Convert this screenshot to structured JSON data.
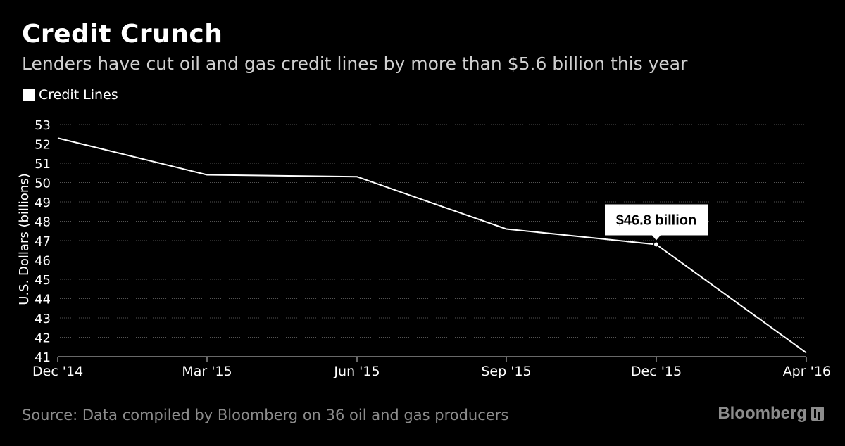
{
  "title": "Credit Crunch",
  "subtitle": "Lenders have cut oil and gas credit lines by more than $5.6 billion this year",
  "legend_label": "Credit Lines",
  "source": "Source: Data compiled by Bloomberg on 36 oil and gas producers",
  "brand": "Bloomberg",
  "brand_icon": "bloomberg-terminal-icon",
  "colors": {
    "background": "#000000",
    "line": "#ffffff",
    "grid": "#555555",
    "callout_bg": "#ffffff",
    "callout_text": "#000000"
  },
  "chart_data": {
    "type": "line",
    "title": "Credit Crunch",
    "ylabel": "U.S. Dollars (billions)",
    "xlabel": "",
    "x_ticks": [
      "Dec '14",
      "Mar '15",
      "Jun '15",
      "Sep '15",
      "Dec '15",
      "Apr '16"
    ],
    "y_ticks": [
      41,
      42,
      43,
      44,
      45,
      46,
      47,
      48,
      49,
      50,
      51,
      52,
      53
    ],
    "ylim": [
      41,
      53
    ],
    "grid": true,
    "legend_position": "top-left",
    "series": [
      {
        "name": "Credit Lines",
        "x": [
          "Dec '14",
          "Mar '15",
          "Jun '15",
          "Sep '15",
          "Dec '15",
          "Apr '16"
        ],
        "values": [
          52.3,
          50.4,
          50.3,
          47.6,
          46.8,
          41.2
        ]
      }
    ],
    "annotations": [
      {
        "x": "Dec '15",
        "y": 46.8,
        "text": "$46.8 billion"
      }
    ]
  }
}
